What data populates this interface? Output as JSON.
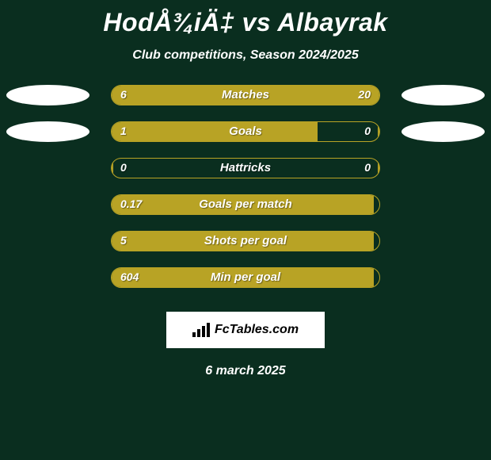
{
  "title": "HodÅ¾iÄ‡ vs Albayrak",
  "subtitle": "Club competitions, Season 2024/2025",
  "date": "6 march 2025",
  "logo_text": "FcTables.com",
  "colors": {
    "background": "#0a2e1f",
    "bar_fill": "#b8a325",
    "bar_border": "#b8a325",
    "ellipse": "#ffffff",
    "text": "#ffffff"
  },
  "stats": [
    {
      "label": "Matches",
      "left_value": "6",
      "right_value": "20",
      "left_fill_pct": 23,
      "right_fill_pct": 77,
      "show_ellipses": true
    },
    {
      "label": "Goals",
      "left_value": "1",
      "right_value": "0",
      "left_fill_pct": 77,
      "right_fill_pct": 0.5,
      "show_ellipses": true
    },
    {
      "label": "Hattricks",
      "left_value": "0",
      "right_value": "0",
      "left_fill_pct": 0.5,
      "right_fill_pct": 0.5,
      "show_ellipses": false
    },
    {
      "label": "Goals per match",
      "left_value": "0.17",
      "right_value": "",
      "left_fill_pct": 98,
      "right_fill_pct": 0,
      "show_ellipses": false
    },
    {
      "label": "Shots per goal",
      "left_value": "5",
      "right_value": "",
      "left_fill_pct": 98,
      "right_fill_pct": 0,
      "show_ellipses": false
    },
    {
      "label": "Min per goal",
      "left_value": "604",
      "right_value": "",
      "left_fill_pct": 98,
      "right_fill_pct": 0,
      "show_ellipses": false
    }
  ]
}
